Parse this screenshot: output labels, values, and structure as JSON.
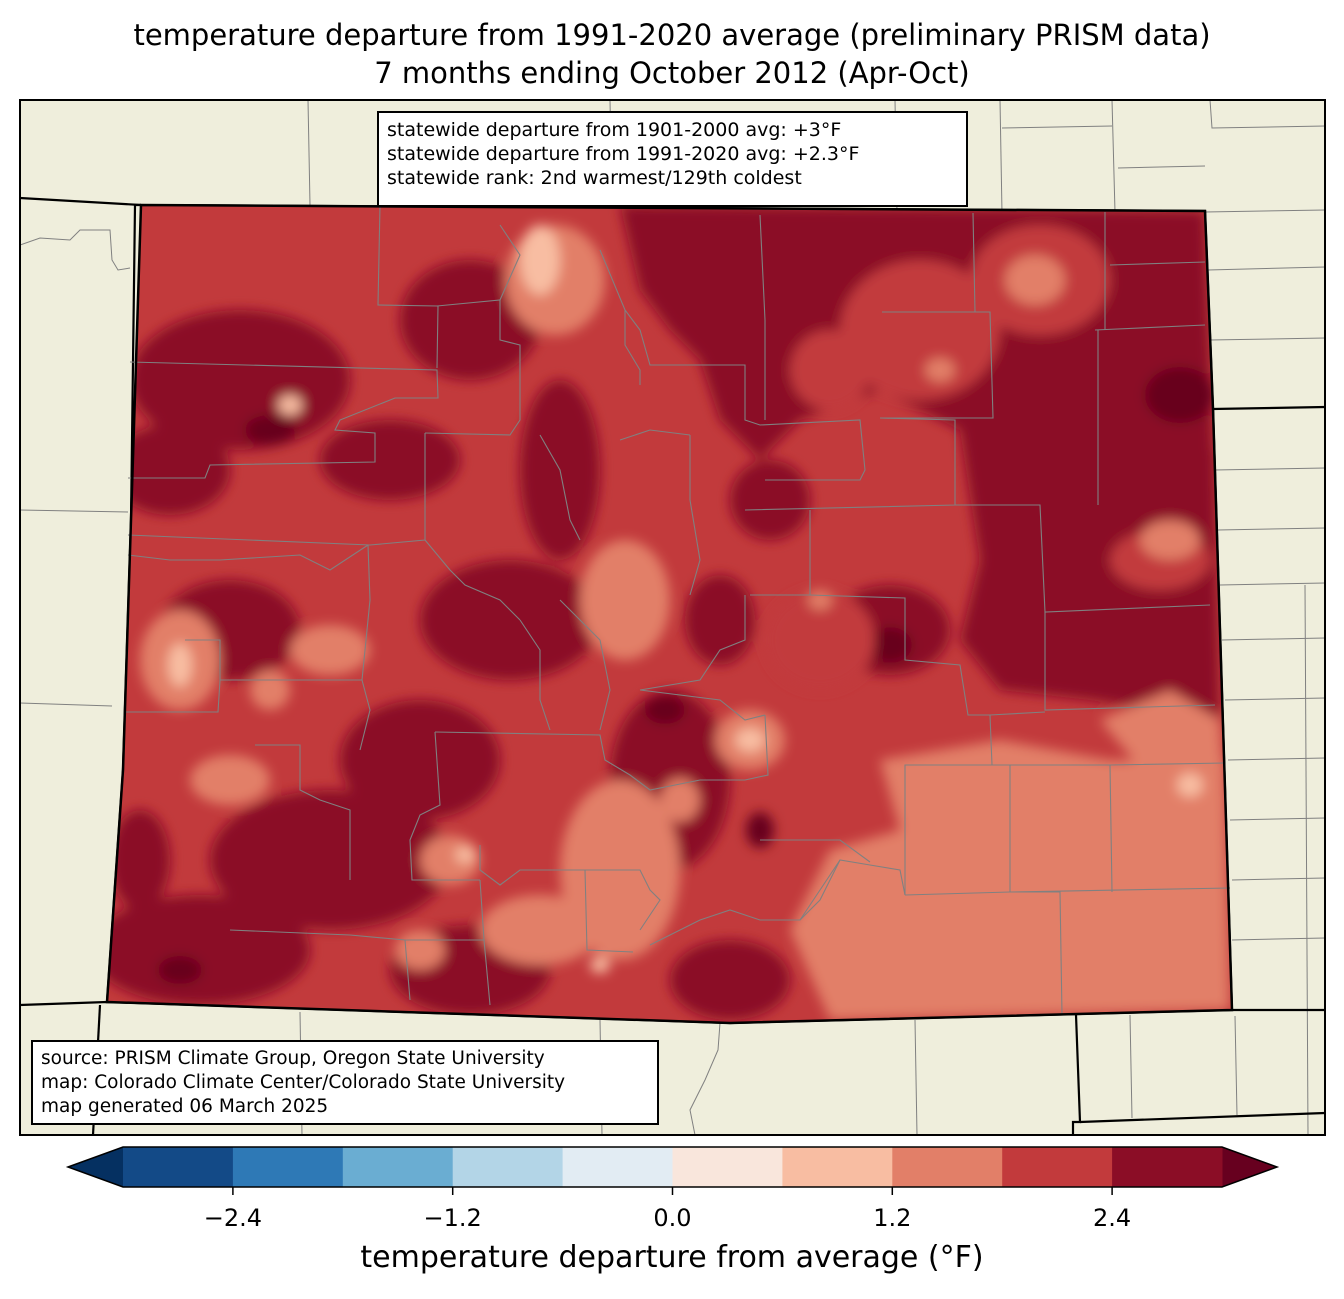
{
  "title": {
    "line1": "temperature departure from 1991-2020 average (preliminary PRISM data)",
    "line2": "7 months ending October 2012 (Apr-Oct)"
  },
  "stats": {
    "line1": "statewide departure from 1901-2000 avg: +3°F",
    "line2": "statewide departure from 1991-2020 avg: +2.3°F",
    "line3": "statewide rank: 2nd warmest/129th coldest"
  },
  "source": {
    "line1": "source: PRISM Climate Group, Oregon State University",
    "line2": "map: Colorado Climate Center/Colorado State University",
    "line3": "map generated 06 March 2025"
  },
  "colorbar": {
    "label": "temperature departure from average (°F)",
    "ticks": [
      "−2.4",
      "−1.2",
      "0.0",
      "1.2",
      "2.4"
    ],
    "tick_values": [
      -2.4,
      -1.2,
      0.0,
      1.2,
      2.4
    ],
    "min": -3.0,
    "max": 3.0,
    "extend": "both",
    "under_color": "#053061",
    "over_color": "#67001f",
    "bins": [
      {
        "from": -3.0,
        "to": -2.4,
        "color": "#134a87"
      },
      {
        "from": -2.4,
        "to": -1.8,
        "color": "#2e79b6"
      },
      {
        "from": -1.8,
        "to": -1.2,
        "color": "#6aadd2"
      },
      {
        "from": -1.2,
        "to": -0.6,
        "color": "#b3d5e7"
      },
      {
        "from": -0.6,
        "to": 0.0,
        "color": "#e2ecf3"
      },
      {
        "from": 0.0,
        "to": 0.6,
        "color": "#f9e6dc"
      },
      {
        "from": 0.6,
        "to": 1.2,
        "color": "#f8bda2"
      },
      {
        "from": 1.2,
        "to": 1.8,
        "color": "#e27f68"
      },
      {
        "from": 1.8,
        "to": 2.4,
        "color": "#c23a3c"
      },
      {
        "from": 2.4,
        "to": 3.0,
        "color": "#8b0d26"
      }
    ]
  },
  "map": {
    "region": "Colorado",
    "land_color": "#efeedc",
    "border_color": "#000000",
    "county_color": "#808080"
  }
}
